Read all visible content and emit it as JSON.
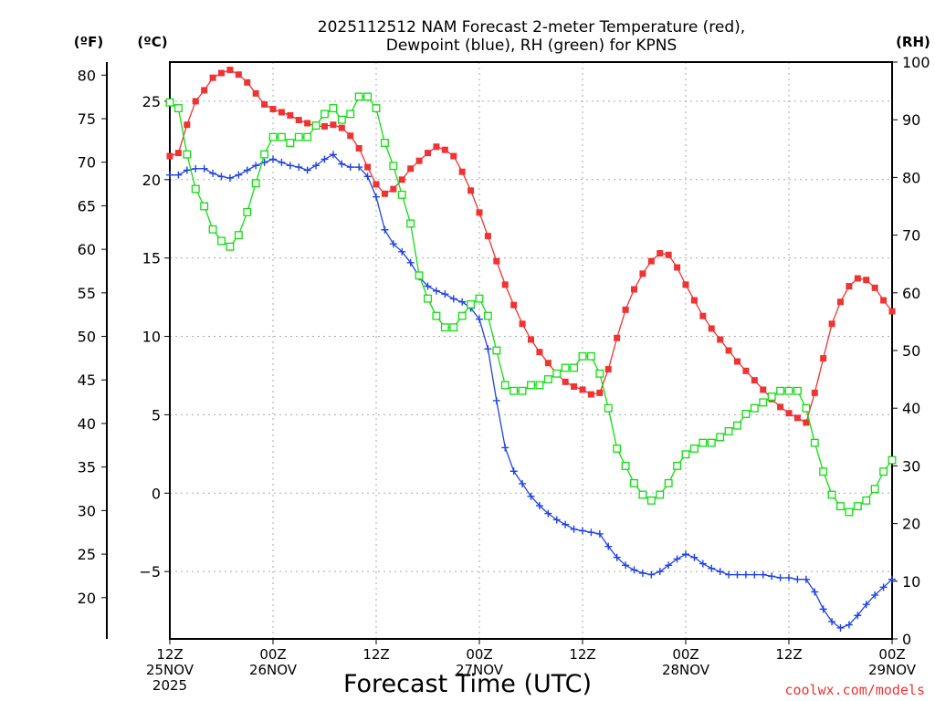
{
  "chart_data": {
    "type": "line",
    "title_lines": [
      "2025112512 NAM Forecast 2-meter Temperature (red),",
      "Dewpoint (blue), RH (green) for KPNS"
    ],
    "units": {
      "fahrenheit": "(ºF)",
      "celsius": "(ºC)",
      "rh": "(RH)"
    },
    "xlabel": "Forecast Time (UTC)",
    "credit": "coolwx.com/models",
    "colors": {
      "temperature": "#ee3333",
      "dewpoint": "#2244dd",
      "rh": "#11dd11",
      "grid": "#aaaaaa",
      "credit": "#ee3333"
    },
    "x_range_hours": [
      0,
      84
    ],
    "x_ticks": [
      {
        "hour": 0,
        "lines": [
          "12Z",
          "25NOV",
          "2025"
        ]
      },
      {
        "hour": 12,
        "lines": [
          "00Z",
          "26NOV"
        ]
      },
      {
        "hour": 24,
        "lines": [
          "12Z"
        ]
      },
      {
        "hour": 36,
        "lines": [
          "00Z",
          "27NOV"
        ]
      },
      {
        "hour": 48,
        "lines": [
          "12Z"
        ]
      },
      {
        "hour": 60,
        "lines": [
          "00Z",
          "28NOV"
        ]
      },
      {
        "hour": 72,
        "lines": [
          "12Z"
        ]
      },
      {
        "hour": 84,
        "lines": [
          "00Z",
          "29NOV"
        ]
      }
    ],
    "celsius_axis": {
      "range": [
        -9.3,
        27.5
      ],
      "ticks": [
        "-5",
        "0",
        "5",
        "10",
        "15",
        "20",
        "25"
      ]
    },
    "fahrenheit_ticks": [
      "20",
      "25",
      "30",
      "35",
      "40",
      "45",
      "50",
      "55",
      "60",
      "65",
      "70",
      "75",
      "80"
    ],
    "rh_axis": {
      "range": [
        0,
        100
      ],
      "ticks": [
        "0",
        "10",
        "20",
        "30",
        "40",
        "50",
        "60",
        "70",
        "80",
        "90",
        "100"
      ]
    },
    "series": [
      {
        "name": "Temperature",
        "unit": "C",
        "marker": "filled-square",
        "points": [
          [
            0,
            21.5
          ],
          [
            1,
            21.7
          ],
          [
            2,
            23.5
          ],
          [
            3,
            25
          ],
          [
            4,
            25.7
          ],
          [
            5,
            26.5
          ],
          [
            6,
            26.8
          ],
          [
            7,
            27
          ],
          [
            8,
            26.7
          ],
          [
            9,
            26.2
          ],
          [
            10,
            25.5
          ],
          [
            11,
            24.8
          ],
          [
            12,
            24.5
          ],
          [
            13,
            24.3
          ],
          [
            14,
            24.1
          ],
          [
            15,
            23.8
          ],
          [
            16,
            23.6
          ],
          [
            17,
            23.4
          ],
          [
            18,
            23.4
          ],
          [
            19,
            23.5
          ],
          [
            20,
            23.3
          ],
          [
            21,
            22.8
          ],
          [
            22,
            22
          ],
          [
            23,
            20.8
          ],
          [
            24,
            19.7
          ],
          [
            25,
            19.1
          ],
          [
            26,
            19.4
          ],
          [
            27,
            20
          ],
          [
            28,
            20.7
          ],
          [
            29,
            21.2
          ],
          [
            30,
            21.7
          ],
          [
            31,
            22.1
          ],
          [
            32,
            21.9
          ],
          [
            33,
            21.5
          ],
          [
            34,
            20.5
          ],
          [
            35,
            19.3
          ],
          [
            36,
            17.9
          ],
          [
            37,
            16.4
          ],
          [
            38,
            14.8
          ],
          [
            39,
            13.3
          ],
          [
            40,
            12
          ],
          [
            41,
            10.8
          ],
          [
            42,
            9.8
          ],
          [
            43,
            9
          ],
          [
            44,
            8.3
          ],
          [
            45,
            7.6
          ],
          [
            46,
            7.1
          ],
          [
            47,
            6.8
          ],
          [
            48,
            6.6
          ],
          [
            49,
            6.3
          ],
          [
            50,
            6.4
          ],
          [
            51,
            7.9
          ],
          [
            52,
            9.9
          ],
          [
            53,
            11.7
          ],
          [
            54,
            13
          ],
          [
            55,
            14
          ],
          [
            56,
            14.8
          ],
          [
            57,
            15.3
          ],
          [
            58,
            15.2
          ],
          [
            59,
            14.4
          ],
          [
            60,
            13.3
          ],
          [
            61,
            12.3
          ],
          [
            62,
            11.3
          ],
          [
            63,
            10.5
          ],
          [
            64,
            9.8
          ],
          [
            65,
            9.1
          ],
          [
            66,
            8.4
          ],
          [
            67,
            7.8
          ],
          [
            68,
            7.2
          ],
          [
            69,
            6.6
          ],
          [
            70,
            6
          ],
          [
            71,
            5.5
          ],
          [
            72,
            5.1
          ],
          [
            73,
            4.8
          ],
          [
            74,
            4.5
          ],
          [
            75,
            6.4
          ],
          [
            76,
            8.6
          ],
          [
            77,
            10.8
          ],
          [
            78,
            12.2
          ],
          [
            79,
            13.2
          ],
          [
            80,
            13.7
          ],
          [
            81,
            13.6
          ],
          [
            82,
            13.1
          ],
          [
            83,
            12.3
          ],
          [
            84,
            11.6
          ]
        ]
      },
      {
        "name": "Dewpoint",
        "unit": "C",
        "marker": "plus",
        "points": [
          [
            0,
            20.3
          ],
          [
            1,
            20.3
          ],
          [
            2,
            20.6
          ],
          [
            3,
            20.7
          ],
          [
            4,
            20.7
          ],
          [
            5,
            20.4
          ],
          [
            6,
            20.2
          ],
          [
            7,
            20.1
          ],
          [
            8,
            20.3
          ],
          [
            9,
            20.6
          ],
          [
            10,
            20.9
          ],
          [
            11,
            21.1
          ],
          [
            12,
            21.3
          ],
          [
            13,
            21.1
          ],
          [
            14,
            20.9
          ],
          [
            15,
            20.8
          ],
          [
            16,
            20.6
          ],
          [
            17,
            20.9
          ],
          [
            18,
            21.3
          ],
          [
            19,
            21.6
          ],
          [
            20,
            21
          ],
          [
            21,
            20.8
          ],
          [
            22,
            20.8
          ],
          [
            23,
            20.2
          ],
          [
            24,
            18.9
          ],
          [
            25,
            16.8
          ],
          [
            26,
            15.9
          ],
          [
            27,
            15.4
          ],
          [
            28,
            14.7
          ],
          [
            29,
            13.8
          ],
          [
            30,
            13.2
          ],
          [
            31,
            12.9
          ],
          [
            32,
            12.7
          ],
          [
            33,
            12.4
          ],
          [
            34,
            12.2
          ],
          [
            35,
            11.8
          ],
          [
            36,
            11.1
          ],
          [
            37,
            9.2
          ],
          [
            38,
            5.9
          ],
          [
            39,
            2.9
          ],
          [
            40,
            1.4
          ],
          [
            41,
            0.6
          ],
          [
            42,
            -0.2
          ],
          [
            43,
            -0.8
          ],
          [
            44,
            -1.3
          ],
          [
            45,
            -1.7
          ],
          [
            46,
            -2
          ],
          [
            47,
            -2.3
          ],
          [
            48,
            -2.4
          ],
          [
            49,
            -2.5
          ],
          [
            50,
            -2.6
          ],
          [
            51,
            -3.4
          ],
          [
            52,
            -4.1
          ],
          [
            53,
            -4.6
          ],
          [
            54,
            -4.9
          ],
          [
            55,
            -5.1
          ],
          [
            56,
            -5.2
          ],
          [
            57,
            -5
          ],
          [
            58,
            -4.6
          ],
          [
            59,
            -4.2
          ],
          [
            60,
            -3.9
          ],
          [
            61,
            -4.1
          ],
          [
            62,
            -4.5
          ],
          [
            63,
            -4.8
          ],
          [
            64,
            -5
          ],
          [
            65,
            -5.2
          ],
          [
            66,
            -5.2
          ],
          [
            67,
            -5.2
          ],
          [
            68,
            -5.2
          ],
          [
            69,
            -5.2
          ],
          [
            70,
            -5.3
          ],
          [
            71,
            -5.4
          ],
          [
            72,
            -5.4
          ],
          [
            73,
            -5.5
          ],
          [
            74,
            -5.5
          ],
          [
            75,
            -6.3
          ],
          [
            76,
            -7.4
          ],
          [
            77,
            -8.2
          ],
          [
            78,
            -8.6
          ],
          [
            79,
            -8.4
          ],
          [
            80,
            -7.8
          ],
          [
            81,
            -7.1
          ],
          [
            82,
            -6.5
          ],
          [
            83,
            -6
          ],
          [
            84,
            -5.5
          ]
        ]
      },
      {
        "name": "RH",
        "unit": "%",
        "marker": "open-square",
        "points": [
          [
            0,
            93
          ],
          [
            1,
            92
          ],
          [
            2,
            84
          ],
          [
            3,
            78
          ],
          [
            4,
            75
          ],
          [
            5,
            71
          ],
          [
            6,
            69
          ],
          [
            7,
            68
          ],
          [
            8,
            70
          ],
          [
            9,
            74
          ],
          [
            10,
            79
          ],
          [
            11,
            84
          ],
          [
            12,
            87
          ],
          [
            13,
            87
          ],
          [
            14,
            86
          ],
          [
            15,
            87
          ],
          [
            16,
            87
          ],
          [
            17,
            89
          ],
          [
            18,
            91
          ],
          [
            19,
            92
          ],
          [
            20,
            90
          ],
          [
            21,
            91
          ],
          [
            22,
            94
          ],
          [
            23,
            94
          ],
          [
            24,
            92
          ],
          [
            25,
            86
          ],
          [
            26,
            82
          ],
          [
            27,
            77
          ],
          [
            28,
            72
          ],
          [
            29,
            63
          ],
          [
            30,
            59
          ],
          [
            31,
            56
          ],
          [
            32,
            54
          ],
          [
            33,
            54
          ],
          [
            34,
            56
          ],
          [
            35,
            58
          ],
          [
            36,
            59
          ],
          [
            37,
            56
          ],
          [
            38,
            50
          ],
          [
            39,
            44
          ],
          [
            40,
            43
          ],
          [
            41,
            43
          ],
          [
            42,
            44
          ],
          [
            43,
            44
          ],
          [
            44,
            45
          ],
          [
            45,
            46
          ],
          [
            46,
            47
          ],
          [
            47,
            47
          ],
          [
            48,
            49
          ],
          [
            49,
            49
          ],
          [
            50,
            46
          ],
          [
            51,
            40
          ],
          [
            52,
            33
          ],
          [
            53,
            30
          ],
          [
            54,
            27
          ],
          [
            55,
            25
          ],
          [
            56,
            24
          ],
          [
            57,
            25
          ],
          [
            58,
            27
          ],
          [
            59,
            30
          ],
          [
            60,
            32
          ],
          [
            61,
            33
          ],
          [
            62,
            34
          ],
          [
            63,
            34
          ],
          [
            64,
            35
          ],
          [
            65,
            36
          ],
          [
            66,
            37
          ],
          [
            67,
            39
          ],
          [
            68,
            40
          ],
          [
            69,
            41
          ],
          [
            70,
            42
          ],
          [
            71,
            43
          ],
          [
            72,
            43
          ],
          [
            73,
            43
          ],
          [
            74,
            40
          ],
          [
            75,
            34
          ],
          [
            76,
            29
          ],
          [
            77,
            25
          ],
          [
            78,
            23
          ],
          [
            79,
            22
          ],
          [
            80,
            23
          ],
          [
            81,
            24
          ],
          [
            82,
            26
          ],
          [
            83,
            29
          ],
          [
            84,
            31
          ]
        ]
      }
    ]
  }
}
